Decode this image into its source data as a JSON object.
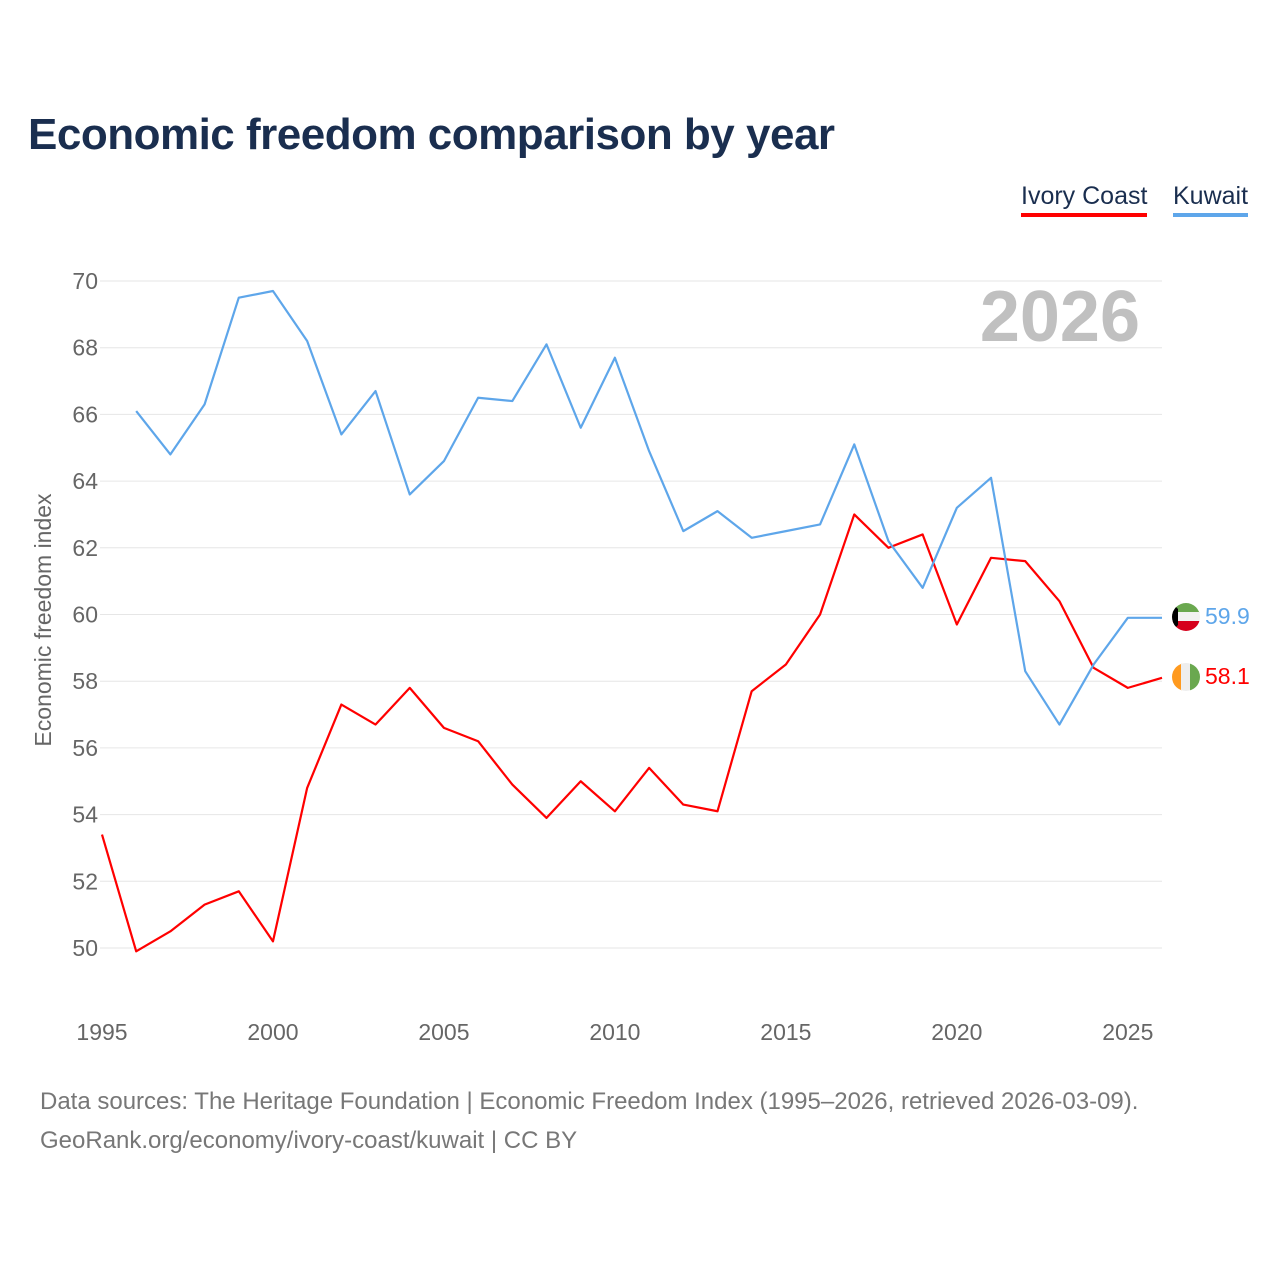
{
  "title": "Economic freedom comparison by year",
  "footer": {
    "line1": "Data sources: The Heritage Foundation | Economic Freedom Index (1995–2026, retrieved 2026-03-09).",
    "line2": "GeoRank.org/economy/ivory-coast/kuwait | CC BY"
  },
  "chart_data": {
    "type": "line",
    "title": "Economic freedom comparison by year",
    "xlabel": "",
    "ylabel": "Economic freedom index",
    "year_label": "2026",
    "xlim": [
      1995,
      2026
    ],
    "ylim": [
      50,
      70
    ],
    "xticks": [
      "1995",
      "2000",
      "2005",
      "2010",
      "2015",
      "2020",
      "2025"
    ],
    "yticks": [
      "50",
      "52",
      "54",
      "56",
      "58",
      "60",
      "62",
      "64",
      "66",
      "68",
      "70"
    ],
    "legend_position": "top-right",
    "series": [
      {
        "name": "Ivory Coast",
        "color": "#ff0000",
        "flag": "ivory-coast-flag",
        "end_label": "58.1",
        "x": [
          1995,
          1996,
          1997,
          1998,
          1999,
          2000,
          2001,
          2002,
          2003,
          2004,
          2005,
          2006,
          2007,
          2008,
          2009,
          2010,
          2011,
          2012,
          2013,
          2014,
          2015,
          2016,
          2017,
          2018,
          2019,
          2020,
          2021,
          2022,
          2023,
          2024,
          2025,
          2026
        ],
        "values": [
          53.4,
          49.9,
          50.5,
          51.3,
          51.7,
          50.2,
          54.8,
          57.3,
          56.7,
          57.8,
          56.6,
          56.2,
          54.9,
          53.9,
          55.0,
          54.1,
          55.4,
          54.3,
          54.1,
          57.7,
          58.5,
          60.0,
          63.0,
          62.0,
          62.4,
          59.7,
          61.7,
          61.6,
          60.4,
          58.4,
          57.8,
          58.1
        ]
      },
      {
        "name": "Kuwait",
        "color": "#5ea6ea",
        "flag": "kuwait-flag",
        "end_label": "59.9",
        "x": [
          1996,
          1997,
          1998,
          1999,
          2000,
          2001,
          2002,
          2003,
          2004,
          2005,
          2006,
          2007,
          2008,
          2009,
          2010,
          2011,
          2012,
          2013,
          2014,
          2015,
          2016,
          2017,
          2018,
          2019,
          2020,
          2021,
          2022,
          2023,
          2024,
          2025,
          2026
        ],
        "values": [
          66.1,
          64.8,
          66.3,
          69.5,
          69.7,
          68.2,
          65.4,
          66.7,
          63.6,
          64.6,
          66.5,
          66.4,
          68.1,
          65.6,
          67.7,
          64.9,
          62.5,
          63.1,
          62.3,
          62.5,
          62.7,
          65.1,
          62.2,
          60.8,
          63.2,
          64.1,
          58.3,
          56.7,
          58.5,
          59.9,
          59.9
        ]
      }
    ]
  }
}
